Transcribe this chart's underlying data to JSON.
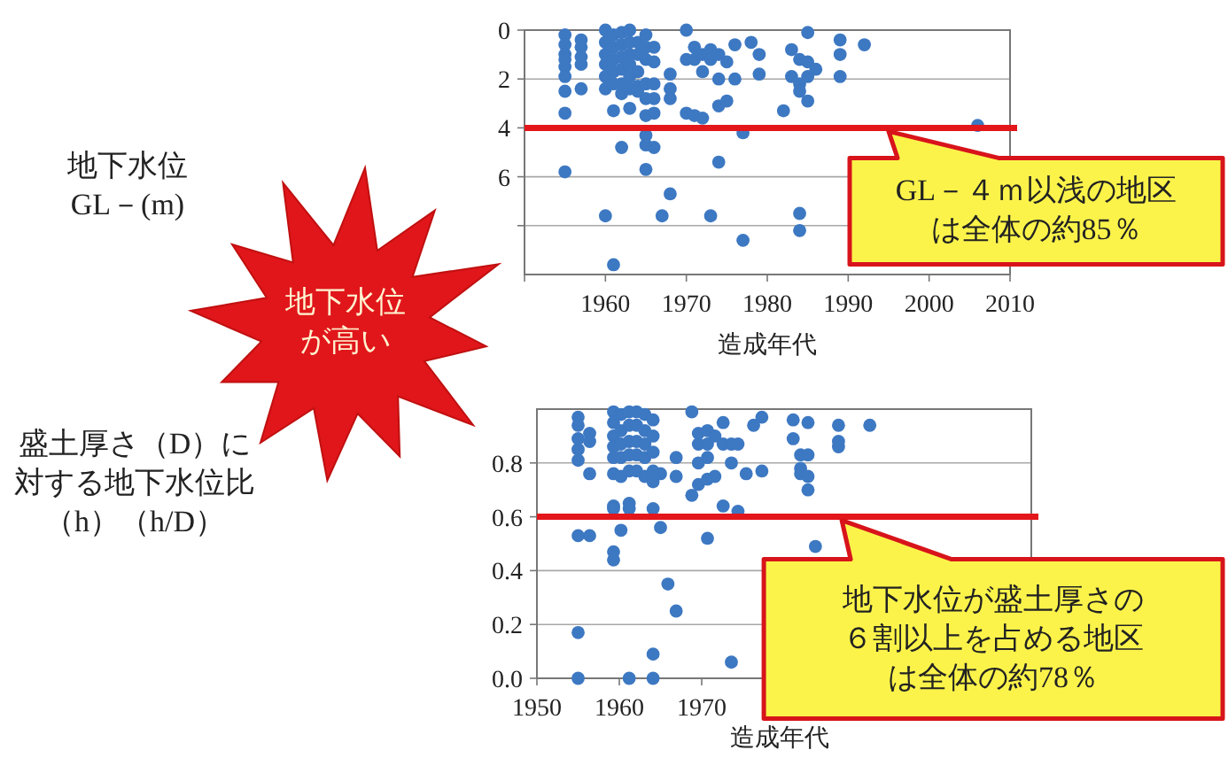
{
  "chart_data": [
    {
      "type": "scatter",
      "xlabel": "造成年代",
      "ylabel": "地下水位GL－(m)",
      "xlim": [
        1950,
        2010
      ],
      "xticks": [
        {
          "value": 1950,
          "label": null
        },
        1960,
        1970,
        1980,
        1990,
        2000,
        2010
      ],
      "ylim": [
        10,
        0
      ],
      "yticks": [
        0,
        2,
        4,
        6,
        {
          "value": 8,
          "label": null
        }
      ],
      "grid": "y",
      "marker": "circle",
      "series": [
        {
          "color": "#3d78c2",
          "x": [
            1955,
            1955,
            1955,
            1955,
            1955,
            1955,
            1955,
            1955,
            1955,
            1957,
            1957,
            1957,
            1957,
            1957,
            1960,
            1960,
            1960,
            1960,
            1960,
            1960,
            1960,
            1961,
            1961,
            1961,
            1961,
            1961,
            1961,
            1961,
            1962,
            1962,
            1962,
            1962,
            1962,
            1962,
            1962,
            1963,
            1963,
            1963,
            1963,
            1963,
            1963,
            1963,
            1964,
            1964,
            1964,
            1964,
            1964,
            1965,
            1965,
            1965,
            1965,
            1965,
            1965,
            1965,
            1965,
            1965,
            1966,
            1966,
            1966,
            1966,
            1966,
            1966,
            1967,
            1968,
            1968,
            1968,
            1968,
            1970,
            1970,
            1970,
            1971,
            1971,
            1971,
            1972,
            1972,
            1972,
            1973,
            1973,
            1973,
            1974,
            1974,
            1974,
            1974,
            1975,
            1975,
            1976,
            1976,
            1977,
            1977,
            1978,
            1979,
            1979,
            1982,
            1983,
            1983,
            1984,
            1984,
            1984,
            1984,
            1984,
            1985,
            1985,
            1985,
            1985,
            1986,
            1989,
            1989,
            1989,
            1992,
            2006
          ],
          "values": [
            0.2,
            0.6,
            1.0,
            1.2,
            1.5,
            1.9,
            2.5,
            3.4,
            5.8,
            0.4,
            0.7,
            1.1,
            1.4,
            2.4,
            0,
            0.5,
            1.0,
            1.4,
            1.9,
            2.4,
            7.6,
            0.2,
            0.7,
            1.2,
            1.7,
            2.2,
            3.3,
            9.6,
            0.1,
            0.6,
            1.1,
            1.6,
            2.2,
            2.6,
            4.8,
            0,
            0.5,
            1.0,
            1.4,
            1.9,
            2.4,
            3.2,
            0.5,
            1.0,
            1.7,
            2.3,
            2.5,
            0.2,
            0.7,
            1.2,
            2.2,
            2.8,
            3.5,
            4.3,
            4.7,
            5.7,
            0.7,
            1.3,
            2.2,
            2.8,
            3.4,
            4.8,
            7.6,
            1.8,
            2.4,
            2.8,
            6.7,
            0,
            1.2,
            3.4,
            0.7,
            1.2,
            3.5,
            1.0,
            1.7,
            3.6,
            0.8,
            1.2,
            7.6,
            1.0,
            2.0,
            3.1,
            5.4,
            1.3,
            2.9,
            0.6,
            2.0,
            4.2,
            8.6,
            0.5,
            1.0,
            1.8,
            3.3,
            0.8,
            1.9,
            1.2,
            2.2,
            2.5,
            7.5,
            8.2,
            0.1,
            1.3,
            1.9,
            2.9,
            1.6,
            0.4,
            1.0,
            1.9,
            0.6,
            3.9
          ]
        }
      ],
      "ref_lines": [
        {
          "axis": "y",
          "value": 4,
          "color": "#e3161b"
        }
      ],
      "annotations": [
        "地下水位が高い",
        {
          "text": "GL－４ｍ以浅の地区は全体の約85％",
          "x": 1995,
          "y": 4
        }
      ]
    },
    {
      "type": "scatter",
      "xlabel": "造成年代",
      "ylabel": "盛土厚さ（D）に対する地下水位比（h）（h/D）",
      "xlim": [
        1950,
        2010
      ],
      "xticks": [
        1950,
        1960,
        1970
      ],
      "ylim": [
        0,
        1
      ],
      "yticks": [
        {
          "value": 0,
          "label": "0.0"
        },
        0.2,
        0.4,
        0.6,
        0.8
      ],
      "grid": "y",
      "marker": "circle",
      "series": [
        {
          "color": "#3d78c2",
          "x": [
            1955,
            1955,
            1955,
            1955,
            1955,
            1955,
            1955,
            1955,
            1956.4,
            1956.4,
            1956.4,
            1956.4,
            1959.3,
            1959.3,
            1959.3,
            1959.3,
            1959.3,
            1959.3,
            1959.3,
            1959.3,
            1959.3,
            1959.3,
            1960.2,
            1960.2,
            1960.2,
            1960.2,
            1960.2,
            1960.2,
            1961.2,
            1961.2,
            1961.2,
            1961.2,
            1961.2,
            1961.2,
            1961.2,
            1961.2,
            1962.1,
            1962.1,
            1962.1,
            1962.1,
            1962.1,
            1963.1,
            1963.1,
            1963.1,
            1963.1,
            1963.1,
            1964.1,
            1964.1,
            1964.1,
            1964.1,
            1964.1,
            1964.1,
            1964.1,
            1964.1,
            1965,
            1965,
            1965.9,
            1966.9,
            1966.9,
            1966.9,
            1968.8,
            1968.8,
            1969.6,
            1969.6,
            1969.6,
            1969.6,
            1970.7,
            1970.7,
            1970.7,
            1970.7,
            1970.7,
            1971.6,
            1971.6,
            1972.6,
            1972.6,
            1972.6,
            1973.6,
            1973.6,
            1973.6,
            1974.4,
            1974.4,
            1975.4,
            1976.3,
            1977.3,
            1977.3,
            1981.1,
            1981.1,
            1982,
            1982,
            1982,
            1982.9,
            1982.9,
            1982.9,
            1982.9,
            1983.8,
            1986.6,
            1986.6,
            1986.6,
            1990.4
          ],
          "values": [
            0.97,
            0.94,
            0.89,
            0.85,
            0.81,
            0.53,
            0.17,
            0,
            0.91,
            0.88,
            0.76,
            0.53,
            0.99,
            0.95,
            0.9,
            0.86,
            0.82,
            0.76,
            0.64,
            0.63,
            0.47,
            0.44,
            0.98,
            0.92,
            0.87,
            0.82,
            0.75,
            0.55,
            0.99,
            0.94,
            0.88,
            0.83,
            0.77,
            0.65,
            0.63,
            0,
            0.99,
            0.94,
            0.88,
            0.83,
            0.77,
            0.98,
            0.92,
            0.87,
            0.82,
            0.75,
            0.96,
            0.9,
            0.84,
            0.77,
            0.73,
            0.63,
            0.09,
            0,
            0.76,
            0.56,
            0.35,
            0.82,
            0.75,
            0.25,
            0.99,
            0.68,
            0.91,
            0.87,
            0.8,
            0.72,
            0.92,
            0.87,
            0.82,
            0.74,
            0.52,
            0.9,
            0.75,
            0.95,
            0.87,
            0.64,
            0.87,
            0.8,
            0.06,
            0.87,
            0.62,
            0.76,
            0.94,
            0.97,
            0.77,
            0.96,
            0.89,
            0.83,
            0.78,
            0.76,
            0.95,
            0.83,
            0.75,
            0.7,
            0.49,
            0.94,
            0.88,
            0.86,
            0.94
          ]
        }
      ],
      "ref_lines": [
        {
          "axis": "y",
          "value": 0.6,
          "color": "#e3161b"
        }
      ],
      "annotations": [
        {
          "text": "地下水位が盛土厚さの６割以上を占める地区は全体の約78％",
          "x": 1987,
          "y": 0.6
        }
      ]
    }
  ]
}
